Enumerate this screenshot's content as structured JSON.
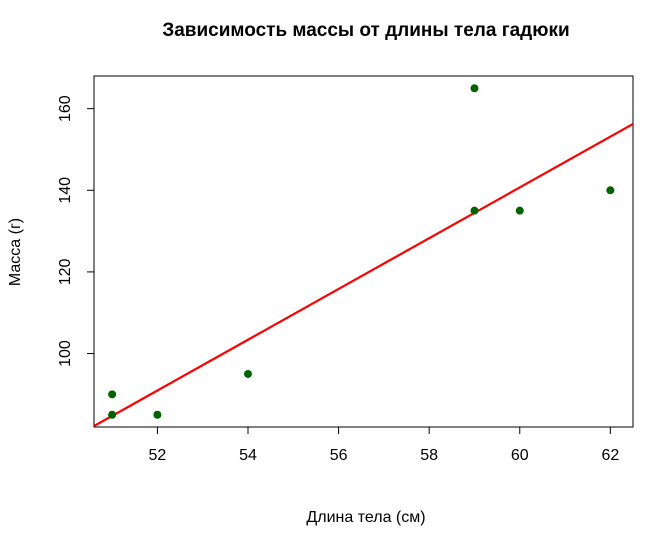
{
  "chart_data": {
    "type": "scatter",
    "title": "Зависимость массы от длины тела гадюки",
    "xlabel": "Длина тела (см)",
    "ylabel": "Масса (г)",
    "xlim": [
      50.6,
      62.5
    ],
    "ylim": [
      82,
      168
    ],
    "x_ticks": [
      52,
      54,
      56,
      58,
      60,
      62
    ],
    "y_ticks": [
      100,
      120,
      140,
      160
    ],
    "grid": false,
    "legend": "none",
    "point_color": "#006400",
    "line_color": "#ff0000",
    "points": [
      {
        "x": 51,
        "y": 85
      },
      {
        "x": 51,
        "y": 90
      },
      {
        "x": 52,
        "y": 85
      },
      {
        "x": 54,
        "y": 95
      },
      {
        "x": 59,
        "y": 135
      },
      {
        "x": 59,
        "y": 165
      },
      {
        "x": 60,
        "y": 135
      },
      {
        "x": 62,
        "y": 140
      }
    ],
    "regression": {
      "slope": 6.22,
      "intercept": -232.5
    }
  }
}
